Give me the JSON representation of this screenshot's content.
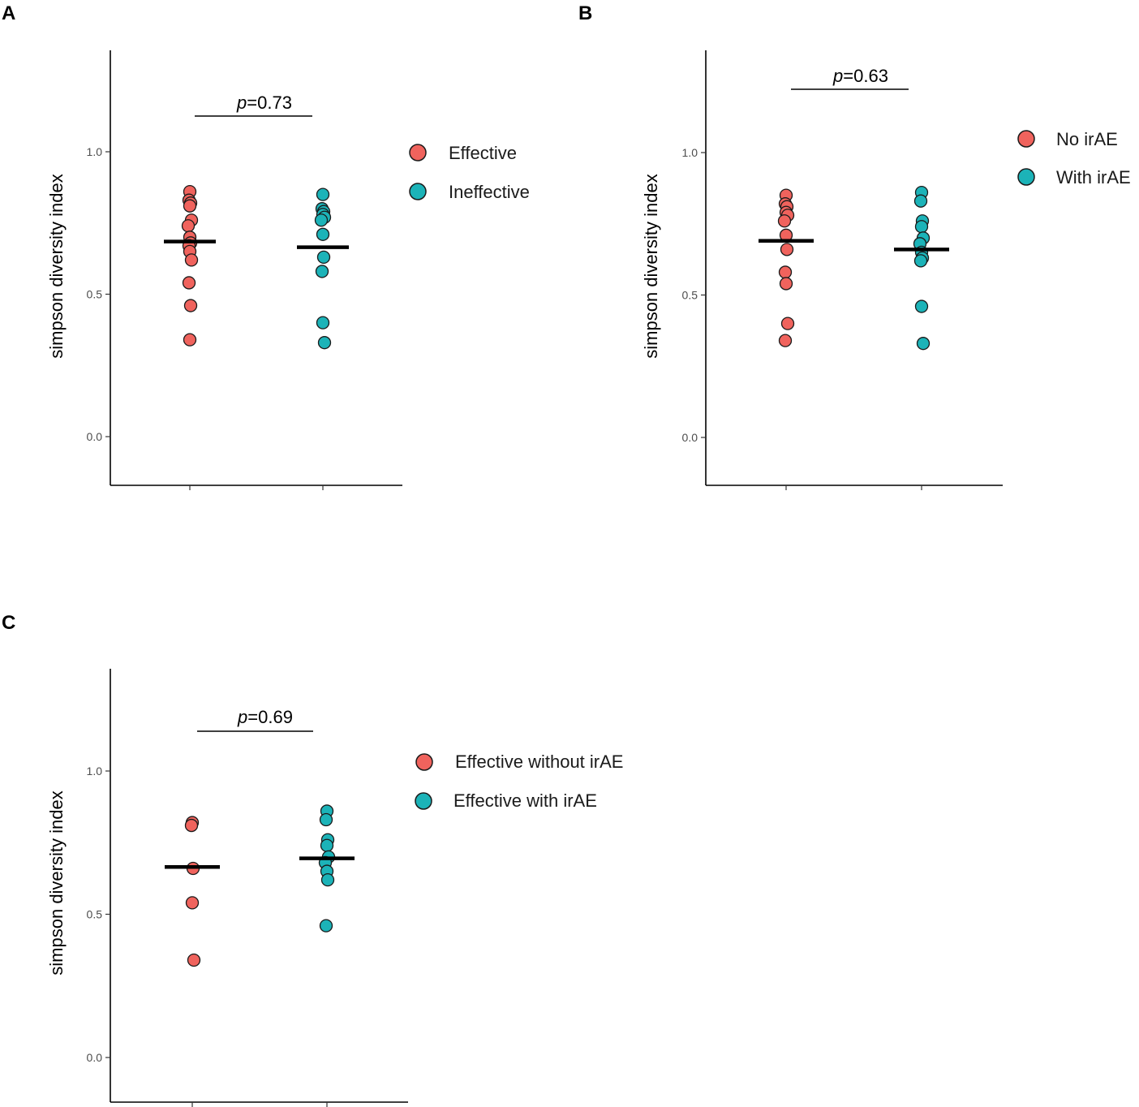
{
  "chart_data": [
    {
      "type": "scatter",
      "panel": "A",
      "ylabel": "simpson diversity index",
      "ylim": [
        -0.17,
        1.36
      ],
      "yticks": [
        "0.0",
        "0.5",
        "1.0"
      ],
      "grid": false,
      "legend_position": "right",
      "p_value": {
        "prefix": "p",
        "text": "=0.73"
      },
      "groups": [
        {
          "name": "Effective",
          "color": "#F0635D",
          "values": [
            0.86,
            0.83,
            0.82,
            0.81,
            0.76,
            0.74,
            0.7,
            0.68,
            0.67,
            0.65,
            0.62,
            0.54,
            0.46,
            0.34
          ],
          "mean": 0.685
        },
        {
          "name": "Ineffective",
          "color": "#1CB3B8",
          "values": [
            0.85,
            0.8,
            0.79,
            0.78,
            0.77,
            0.76,
            0.71,
            0.63,
            0.58,
            0.4,
            0.33
          ],
          "mean": 0.665
        }
      ]
    },
    {
      "type": "scatter",
      "panel": "B",
      "ylabel": "simpson diversity index",
      "ylim": [
        -0.17,
        1.36
      ],
      "yticks": [
        "0.0",
        "0.5",
        "1.0"
      ],
      "grid": false,
      "legend_position": "right",
      "p_value": {
        "prefix": "p",
        "text": "=0.63"
      },
      "groups": [
        {
          "name": "No irAE",
          "color": "#F0635D",
          "values": [
            0.85,
            0.82,
            0.81,
            0.79,
            0.78,
            0.76,
            0.71,
            0.66,
            0.58,
            0.54,
            0.4,
            0.34
          ],
          "mean": 0.69
        },
        {
          "name": "With irAE",
          "color": "#1CB3B8",
          "values": [
            0.86,
            0.83,
            0.76,
            0.74,
            0.7,
            0.68,
            0.65,
            0.63,
            0.62,
            0.46,
            0.33
          ],
          "mean": 0.66
        }
      ]
    },
    {
      "type": "scatter",
      "panel": "C",
      "ylabel": "simpson diversity index",
      "ylim": [
        -0.17,
        1.36
      ],
      "yticks": [
        "0.0",
        "0.5",
        "1.0"
      ],
      "grid": false,
      "legend_position": "right",
      "p_value": {
        "prefix": "p",
        "text": "=0.69"
      },
      "groups": [
        {
          "name": "Effective without irAE",
          "color": "#F0635D",
          "values": [
            0.82,
            0.81,
            0.66,
            0.54,
            0.34
          ],
          "mean": 0.665
        },
        {
          "name": "Effective with irAE",
          "color": "#1CB3B8",
          "values": [
            0.86,
            0.83,
            0.76,
            0.74,
            0.7,
            0.68,
            0.65,
            0.62,
            0.46
          ],
          "mean": 0.695
        }
      ]
    }
  ]
}
